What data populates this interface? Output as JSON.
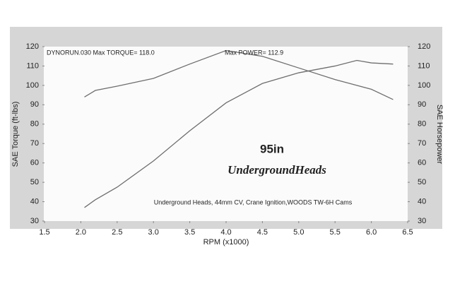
{
  "chart_data": {
    "type": "line",
    "annotations": [
      "DYNORUN.030  Max TORQUE= 118.0",
      "Max POWER= 112.9",
      "95in",
      "UndergroundHeads",
      "Underground Heads, 44mm CV, Crane Ignition,WOODS TW-6H Cams"
    ],
    "x_label": "RPM (x1000)",
    "y_label": "SAE Torque (ft-lbs)",
    "y2_label": "SAE Horsepower",
    "x": [
      2.05,
      2.2,
      2.5,
      3.0,
      3.5,
      4.0,
      4.5,
      5.0,
      5.5,
      5.8,
      6.0,
      6.3
    ],
    "series": [
      {
        "color": "#6e6e6e",
        "values": [
          94,
          97.4,
          99.6,
          103.6,
          111,
          118,
          115,
          109,
          103,
          100,
          98,
          92.7
        ]
      },
      {
        "color": "#6e6e6e",
        "axis": "y2",
        "values": [
          37,
          41,
          47.5,
          61,
          76.6,
          91,
          101,
          106.5,
          110,
          112.9,
          111.6,
          111
        ]
      }
    ],
    "xlim": [
      1.5,
      6.5
    ],
    "xticks": [
      1.5,
      {
        "value": 2,
        "label": "2.0"
      },
      2.5,
      {
        "value": 3,
        "label": "3.0"
      },
      3.5,
      {
        "value": 4,
        "label": "4.0"
      },
      4.5,
      {
        "value": 5,
        "label": "5.0"
      },
      5.5,
      {
        "value": 6,
        "label": "6.0"
      },
      6.5
    ],
    "ylim": [
      30,
      120
    ],
    "yticks": [
      30,
      40,
      50,
      60,
      70,
      80,
      90,
      100,
      110,
      120
    ],
    "y2lim": [
      30,
      120
    ],
    "y2ticks": [
      30,
      40,
      50,
      60,
      70,
      80,
      90,
      100,
      110,
      120
    ]
  }
}
